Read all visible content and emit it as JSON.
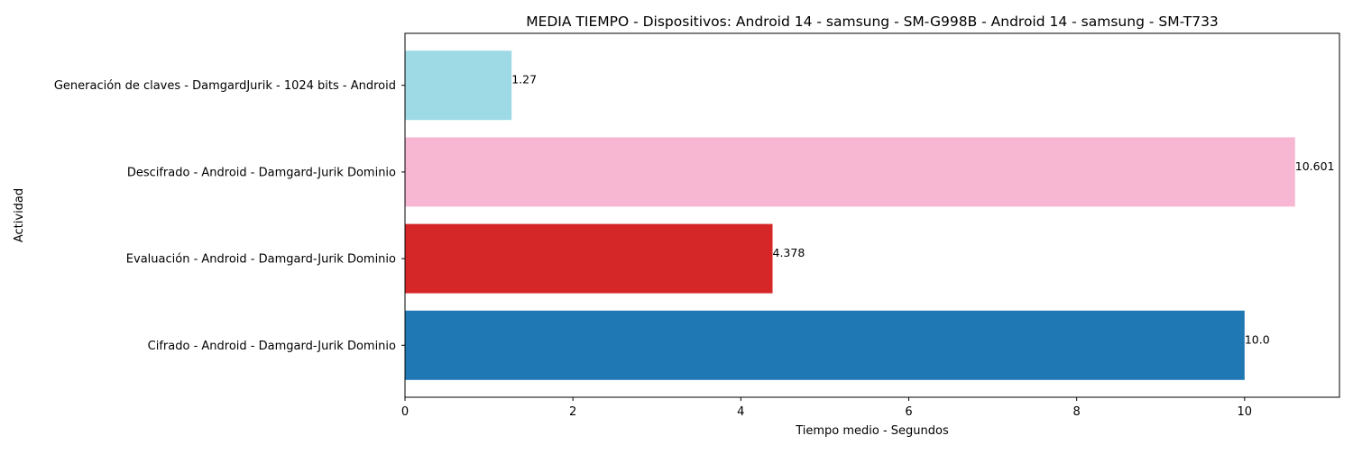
{
  "chart_data": {
    "type": "bar",
    "orientation": "horizontal",
    "title": "MEDIA TIEMPO - Dispositivos: Android 14 - samsung - SM-G998B - Android 14 - samsung - SM-T733",
    "xlabel": "Tiempo medio - Segundos",
    "ylabel": "Actividad",
    "categories": [
      "Cifrado - Android - Damgard-Jurik Dominio",
      "Evaluación - Android - Damgard-Jurik Dominio",
      "Descifrado - Android - Damgard-Jurik Dominio",
      "Generación de claves - DamgardJurik - 1024 bits - Android"
    ],
    "values": [
      10.0,
      4.378,
      10.601,
      1.27
    ],
    "value_labels": [
      "10.0",
      "4.378",
      "10.601",
      "1.27"
    ],
    "colors": [
      "#1f77b4",
      "#d62728",
      "#f7b6d2",
      "#9edae5"
    ],
    "xlim": [
      0,
      11.13
    ],
    "xticks": [
      0,
      2,
      4,
      6,
      8,
      10
    ],
    "grid": false,
    "legend": "none"
  }
}
